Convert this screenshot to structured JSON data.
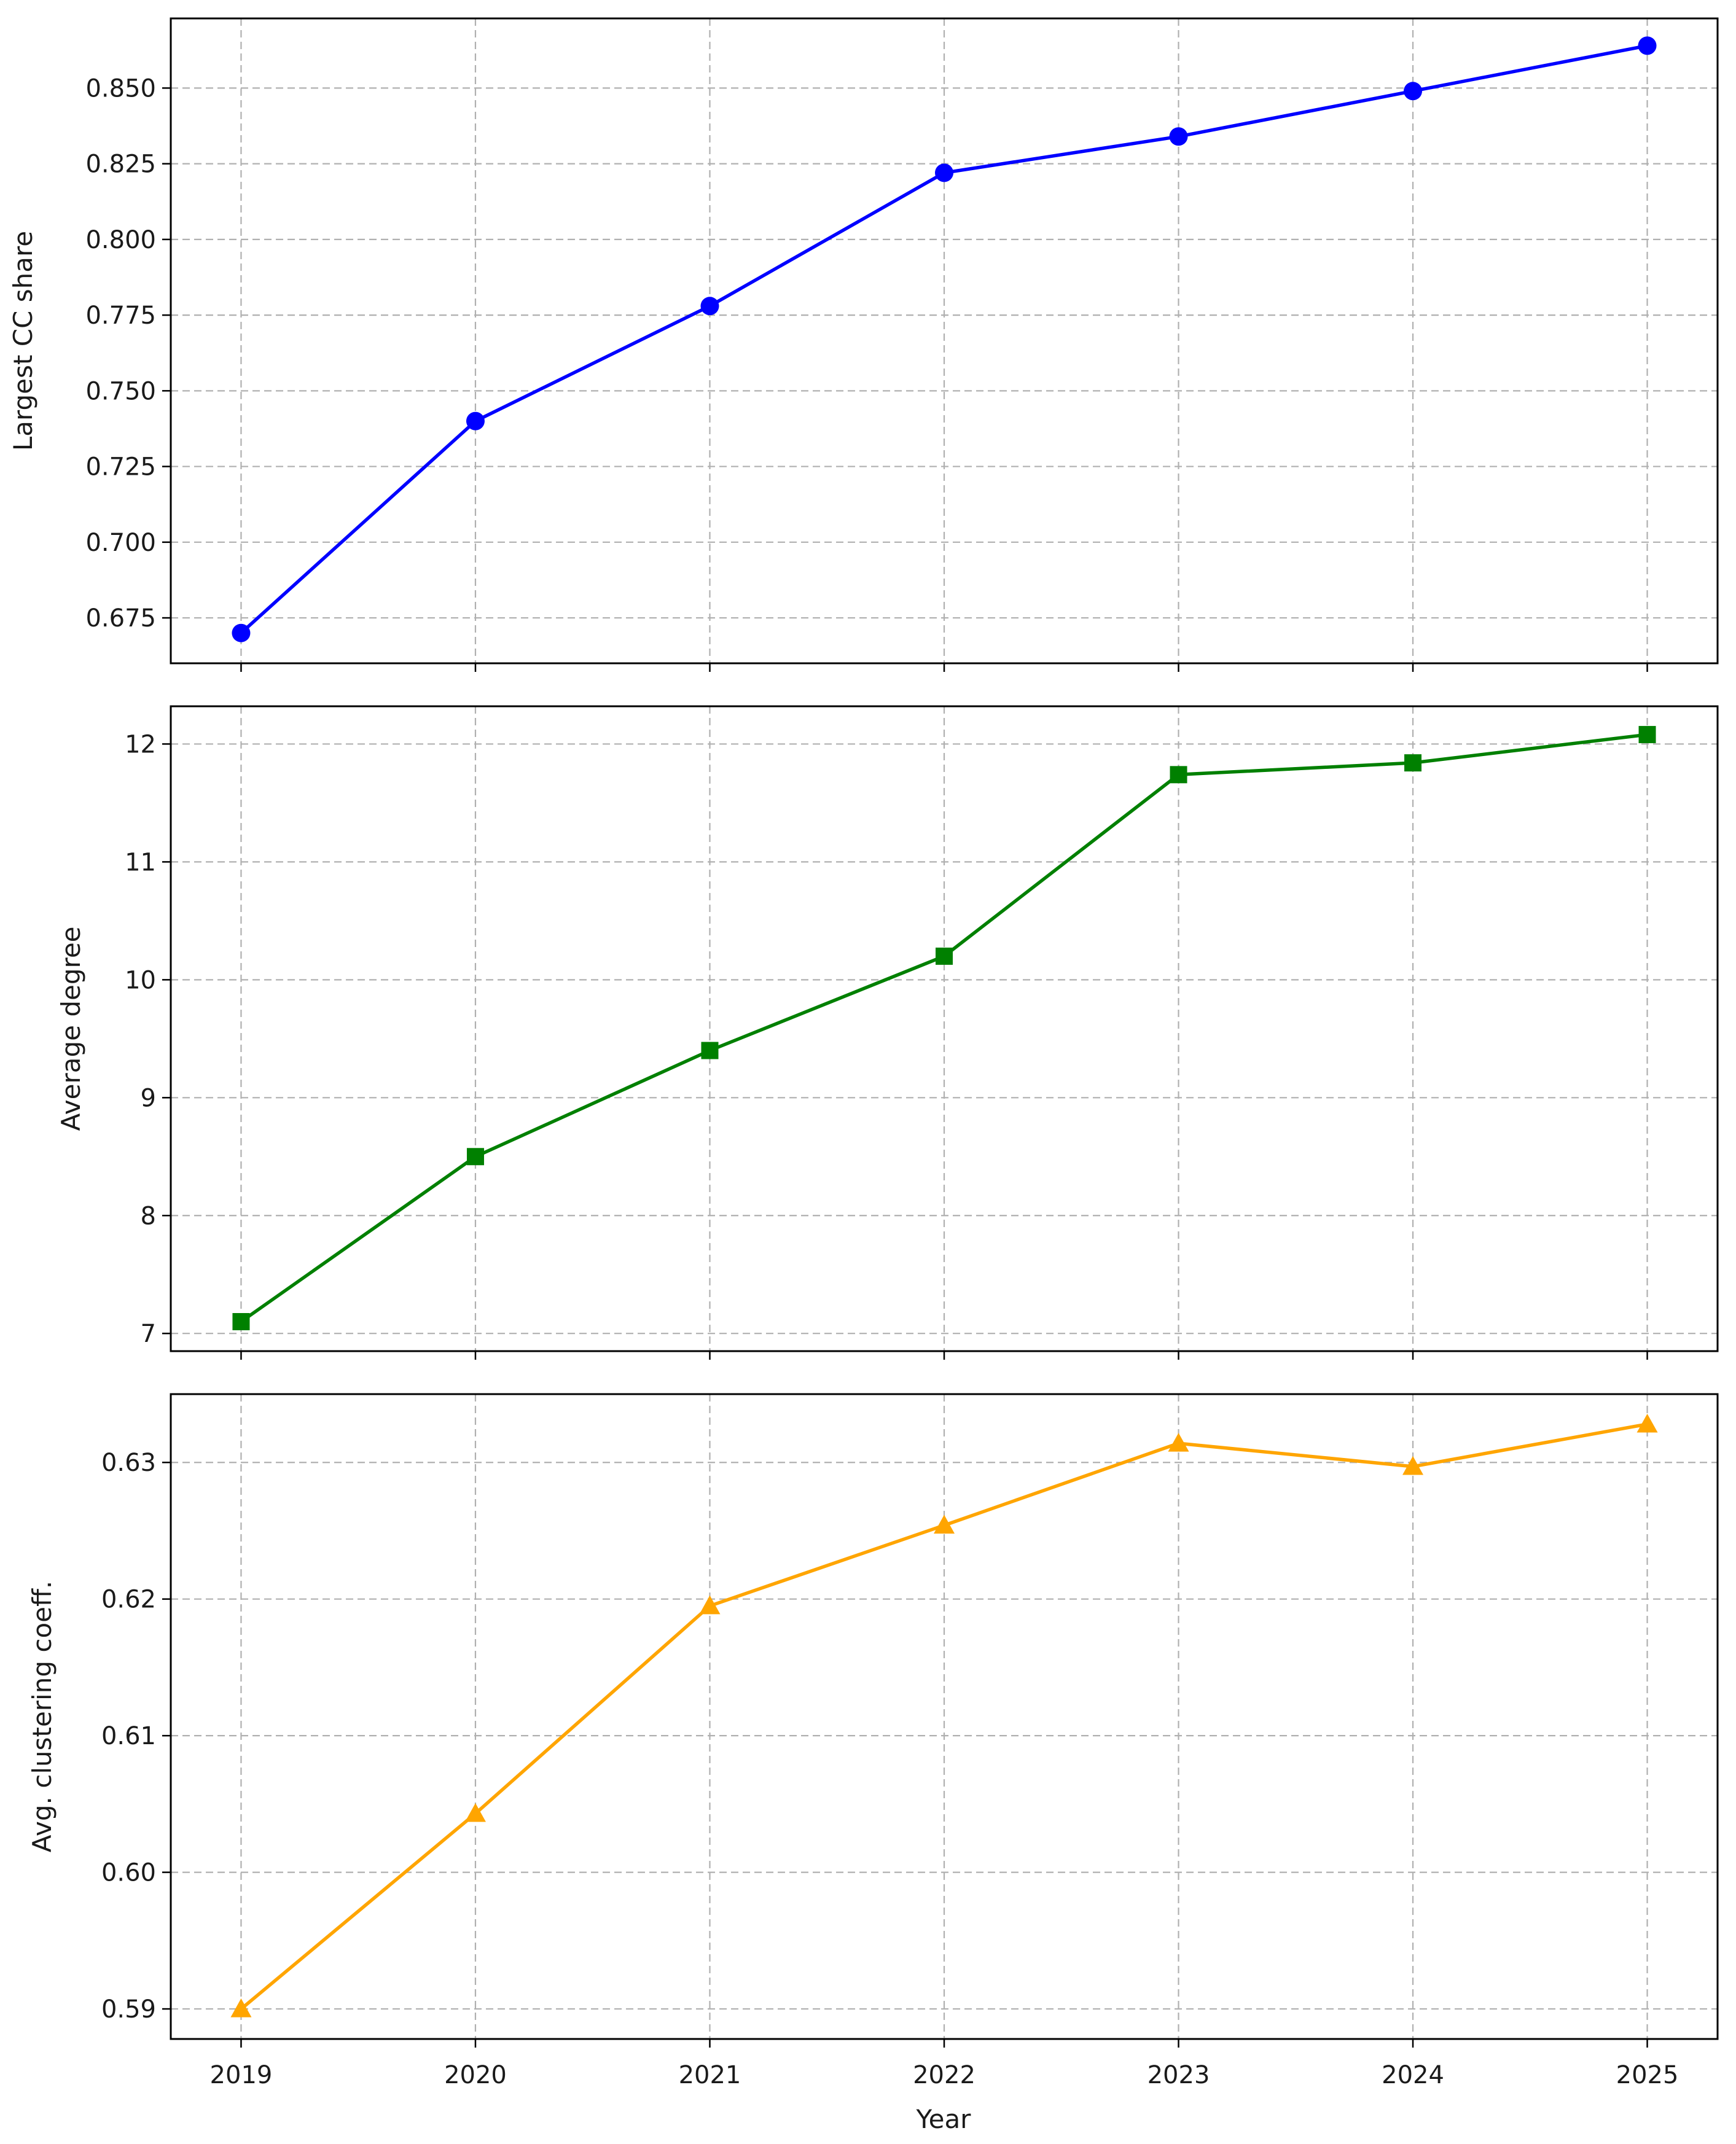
{
  "chart_data": [
    {
      "type": "line",
      "x": [
        2019,
        2020,
        2021,
        2022,
        2023,
        2024,
        2025
      ],
      "values": [
        0.67,
        0.74,
        0.778,
        0.822,
        0.834,
        0.849,
        0.864
      ],
      "ylabel": "Largest CC share",
      "xlabel": "",
      "yticks": [
        0.675,
        0.7,
        0.725,
        0.75,
        0.775,
        0.8,
        0.825,
        0.85
      ],
      "ytick_labels": [
        "0.675",
        "0.700",
        "0.725",
        "0.750",
        "0.775",
        "0.800",
        "0.825",
        "0.850"
      ],
      "ylim": [
        0.66,
        0.873
      ],
      "color": "#0000ff",
      "marker": "circle",
      "grid": true
    },
    {
      "type": "line",
      "x": [
        2019,
        2020,
        2021,
        2022,
        2023,
        2024,
        2025
      ],
      "values": [
        7.1,
        8.5,
        9.4,
        10.2,
        11.74,
        11.84,
        12.08
      ],
      "ylabel": "Average degree",
      "xlabel": "",
      "yticks": [
        7,
        8,
        9,
        10,
        11,
        12
      ],
      "ytick_labels": [
        "7",
        "8",
        "9",
        "10",
        "11",
        "12"
      ],
      "ylim": [
        6.85,
        12.32
      ],
      "color": "#008000",
      "marker": "square",
      "grid": true
    },
    {
      "type": "line",
      "x": [
        2019,
        2020,
        2021,
        2022,
        2023,
        2024,
        2025
      ],
      "values": [
        0.59,
        0.6043,
        0.6195,
        0.6254,
        0.6314,
        0.6297,
        0.6328
      ],
      "ylabel": "Avg. clustering coeff.",
      "xlabel": "Year",
      "yticks": [
        0.59,
        0.6,
        0.61,
        0.62,
        0.63
      ],
      "ytick_labels": [
        "0.59",
        "0.60",
        "0.61",
        "0.62",
        "0.63"
      ],
      "ylim": [
        0.5878,
        0.635
      ],
      "color": "#ffa500",
      "marker": "triangle",
      "grid": true
    }
  ],
  "x_tick_labels": [
    "2019",
    "2020",
    "2021",
    "2022",
    "2023",
    "2024",
    "2025"
  ],
  "x_range": [
    2018.7,
    2025.3
  ]
}
